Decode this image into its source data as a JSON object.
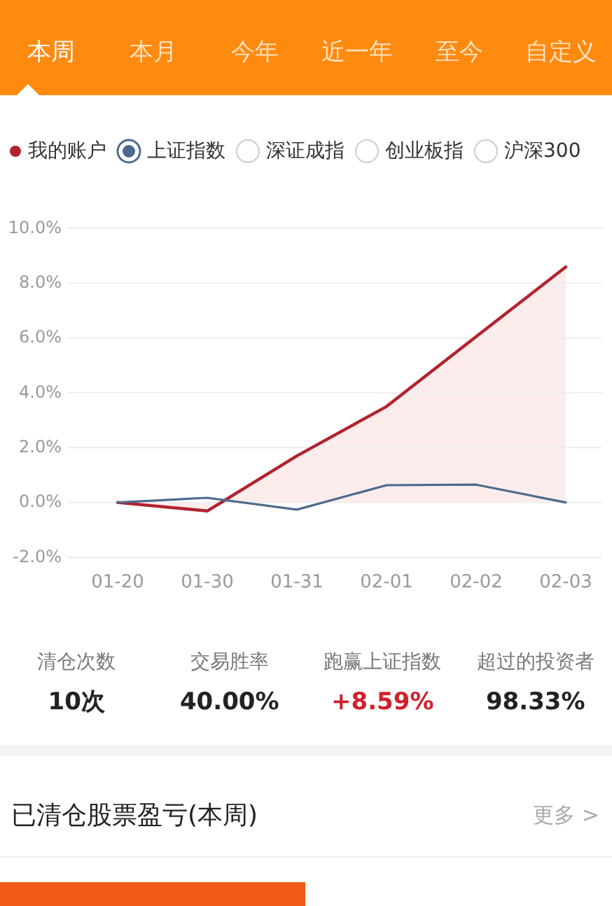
{
  "chart_data": [
    {
      "type": "other",
      "annotations": [
        "本周",
        "本月",
        "今年",
        "近一年",
        "至今",
        "自定义"
      ]
    },
    {
      "type": "line",
      "categories": [
        "01-20",
        "01-30",
        "01-31",
        "02-01",
        "02-02",
        "02-03"
      ],
      "series": [
        {
          "name": "我的账户",
          "type": "area",
          "color": "#b0232e",
          "values": [
            0,
            -0.31,
            1.7,
            3.5,
            6.05,
            8.59
          ]
        },
        {
          "name": "上证指数",
          "color": "#4c6b8c",
          "values": [
            0,
            0.17,
            -0.26,
            0.63,
            0.65,
            0
          ]
        }
      ],
      "ylim": [
        -2,
        10
      ],
      "yticks": [
        {
          "value": 10,
          "label": "10.0%"
        },
        {
          "value": 8,
          "label": "8.0%"
        },
        {
          "value": 6,
          "label": "6.0%"
        },
        {
          "value": 4,
          "label": "4.0%"
        },
        {
          "value": 2,
          "label": "2.0%"
        },
        {
          "value": 0,
          "label": "0.0%"
        },
        {
          "value": -2,
          "label": "-2.0%"
        }
      ],
      "grid": "y",
      "legend": "top",
      "annotations": [
        "深证成指",
        "创业板指",
        "沪深300"
      ]
    },
    {
      "type": "other",
      "annotations": [
        "清仓次数",
        "10次",
        "交易胜率",
        "40.00%",
        "跑赢上证指数",
        "+8.59%",
        "超过的投资者",
        "98.33%",
        "已清仓股票盈亏(本周)",
        "更多 >"
      ]
    }
  ]
}
